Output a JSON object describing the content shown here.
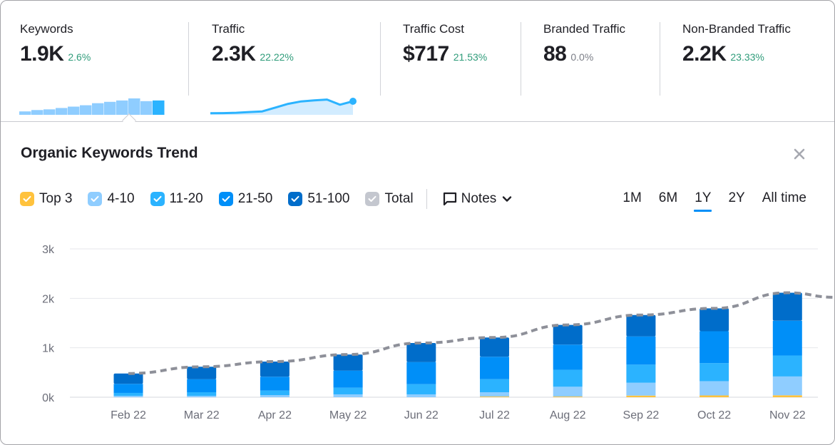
{
  "summary": {
    "metrics": [
      {
        "label": "Keywords",
        "value": "1.9K",
        "delta": "2.6%",
        "delta_tone": "positive"
      },
      {
        "label": "Traffic",
        "value": "2.3K",
        "delta": "22.22%",
        "delta_tone": "positive"
      },
      {
        "label": "Traffic Cost",
        "value": "$717",
        "delta": "21.53%",
        "delta_tone": "positive"
      },
      {
        "label": "Branded Traffic",
        "value": "88",
        "delta": "0.0%",
        "delta_tone": "neutral"
      },
      {
        "label": "Non-Branded Traffic",
        "value": "2.2K",
        "delta": "23.33%",
        "delta_tone": "positive"
      }
    ],
    "keywords_sparkline": [
      5,
      7,
      8,
      10,
      12,
      14,
      17,
      19,
      21,
      24,
      20,
      21
    ],
    "traffic_sparkline": [
      0.05,
      0.06,
      0.08,
      0.12,
      0.16,
      0.38,
      0.6,
      0.74,
      0.8,
      0.85,
      0.55,
      0.75
    ]
  },
  "panel": {
    "title": "Organic Keywords Trend",
    "close_icon": "close-icon"
  },
  "legend": [
    {
      "key": "top3",
      "label": "Top 3",
      "color": "#ffc23d",
      "checked": true
    },
    {
      "key": "p4_10",
      "label": "4-10",
      "color": "#8fcdff",
      "checked": true
    },
    {
      "key": "p11_20",
      "label": "11-20",
      "color": "#2bb3ff",
      "checked": true
    },
    {
      "key": "p21_50",
      "label": "21-50",
      "color": "#008ff8",
      "checked": true
    },
    {
      "key": "p51_100",
      "label": "51-100",
      "color": "#006dca",
      "checked": true
    },
    {
      "key": "total",
      "label": "Total",
      "color": "#c4c7cf",
      "checked": true
    }
  ],
  "notes": {
    "label": "Notes",
    "icon": "comment-icon"
  },
  "ranges": [
    {
      "label": "1M",
      "active": false
    },
    {
      "label": "6M",
      "active": false
    },
    {
      "label": "1Y",
      "active": true
    },
    {
      "label": "2Y",
      "active": false
    },
    {
      "label": "All time",
      "active": false
    }
  ],
  "chart_data": {
    "type": "bar",
    "stacked": true,
    "title": "Organic Keywords Trend",
    "xlabel": "",
    "ylabel": "",
    "ylim": [
      0,
      3000
    ],
    "yticks": [
      0,
      1000,
      2000,
      3000
    ],
    "ytick_labels": [
      "0k",
      "1k",
      "2k",
      "3k"
    ],
    "grid": true,
    "categories": [
      "Feb 22",
      "Mar 22",
      "Apr 22",
      "May 22",
      "Jun 22",
      "Jul 22",
      "Aug 22",
      "Sep 22",
      "Oct 22",
      "Nov 22"
    ],
    "series": [
      {
        "name": "Top 3",
        "color": "#ffc23d",
        "values": [
          0,
          0,
          0,
          0,
          0,
          14,
          14,
          33,
          36,
          39
        ]
      },
      {
        "name": "4-10",
        "color": "#8fcdff",
        "values": [
          29,
          29,
          43,
          58,
          58,
          87,
          198,
          260,
          289,
          381
        ]
      },
      {
        "name": "11-20",
        "color": "#2bb3ff",
        "values": [
          58,
          72,
          91,
          134,
          206,
          264,
          342,
          366,
          365,
          423
        ]
      },
      {
        "name": "21-50",
        "color": "#008ff8",
        "values": [
          183,
          264,
          280,
          346,
          447,
          453,
          509,
          571,
          645,
          703
        ]
      },
      {
        "name": "51-100",
        "color": "#006dca",
        "values": [
          210,
          251,
          307,
          326,
          385,
          390,
          400,
          433,
          462,
          567
        ]
      }
    ],
    "total": {
      "name": "Total",
      "color": "#8e9099",
      "style": "dashed",
      "values": [
        480,
        616,
        721,
        864,
        1097,
        1208,
        1463,
        1663,
        1797,
        2113
      ],
      "trailing_value": 2020
    }
  }
}
